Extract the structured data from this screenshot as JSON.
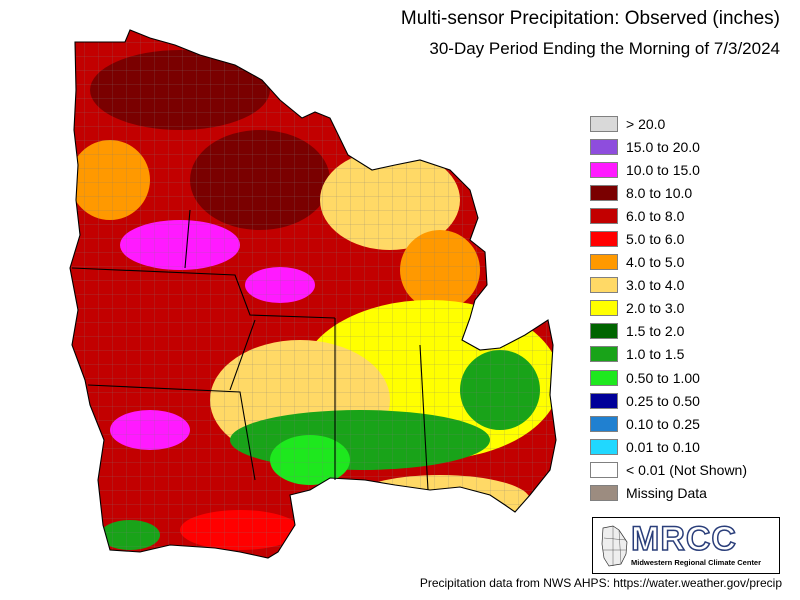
{
  "title": "Multi-sensor Precipitation: Observed (inches)",
  "subtitle": "30-Day Period Ending the Morning of 7/3/2024",
  "legend": [
    {
      "label": "> 20.0",
      "color": "#d9d9d9"
    },
    {
      "label": "15.0 to 20.0",
      "color": "#8e4ddd"
    },
    {
      "label": "10.0 to 15.0",
      "color": "#ff1aff"
    },
    {
      "label": "8.0 to 10.0",
      "color": "#7a0000"
    },
    {
      "label": "6.0 to 8.0",
      "color": "#c20000"
    },
    {
      "label": "5.0 to 6.0",
      "color": "#ff0000"
    },
    {
      "label": "4.0 to 5.0",
      "color": "#ff9900"
    },
    {
      "label": "3.0 to 4.0",
      "color": "#ffd966"
    },
    {
      "label": "2.0 to 3.0",
      "color": "#ffff00"
    },
    {
      "label": "1.5 to 2.0",
      "color": "#006400"
    },
    {
      "label": "1.0 to 1.5",
      "color": "#19a319"
    },
    {
      "label": "0.50 to 1.00",
      "color": "#1ee81e"
    },
    {
      "label": "0.25 to 0.50",
      "color": "#000099"
    },
    {
      "label": "0.10 to 0.25",
      "color": "#2080d0"
    },
    {
      "label": "0.01 to 0.10",
      "color": "#20d8ff"
    },
    {
      "label": "< 0.01 (Not Shown)",
      "color": "#ffffff"
    },
    {
      "label": "Missing Data",
      "color": "#9c8c80"
    }
  ],
  "logo": {
    "acronym": "MRCC",
    "name": "Midwestern Regional Climate Center"
  },
  "footer": "Precipitation data from NWS AHPS: https://water.weather.gov/precip"
}
